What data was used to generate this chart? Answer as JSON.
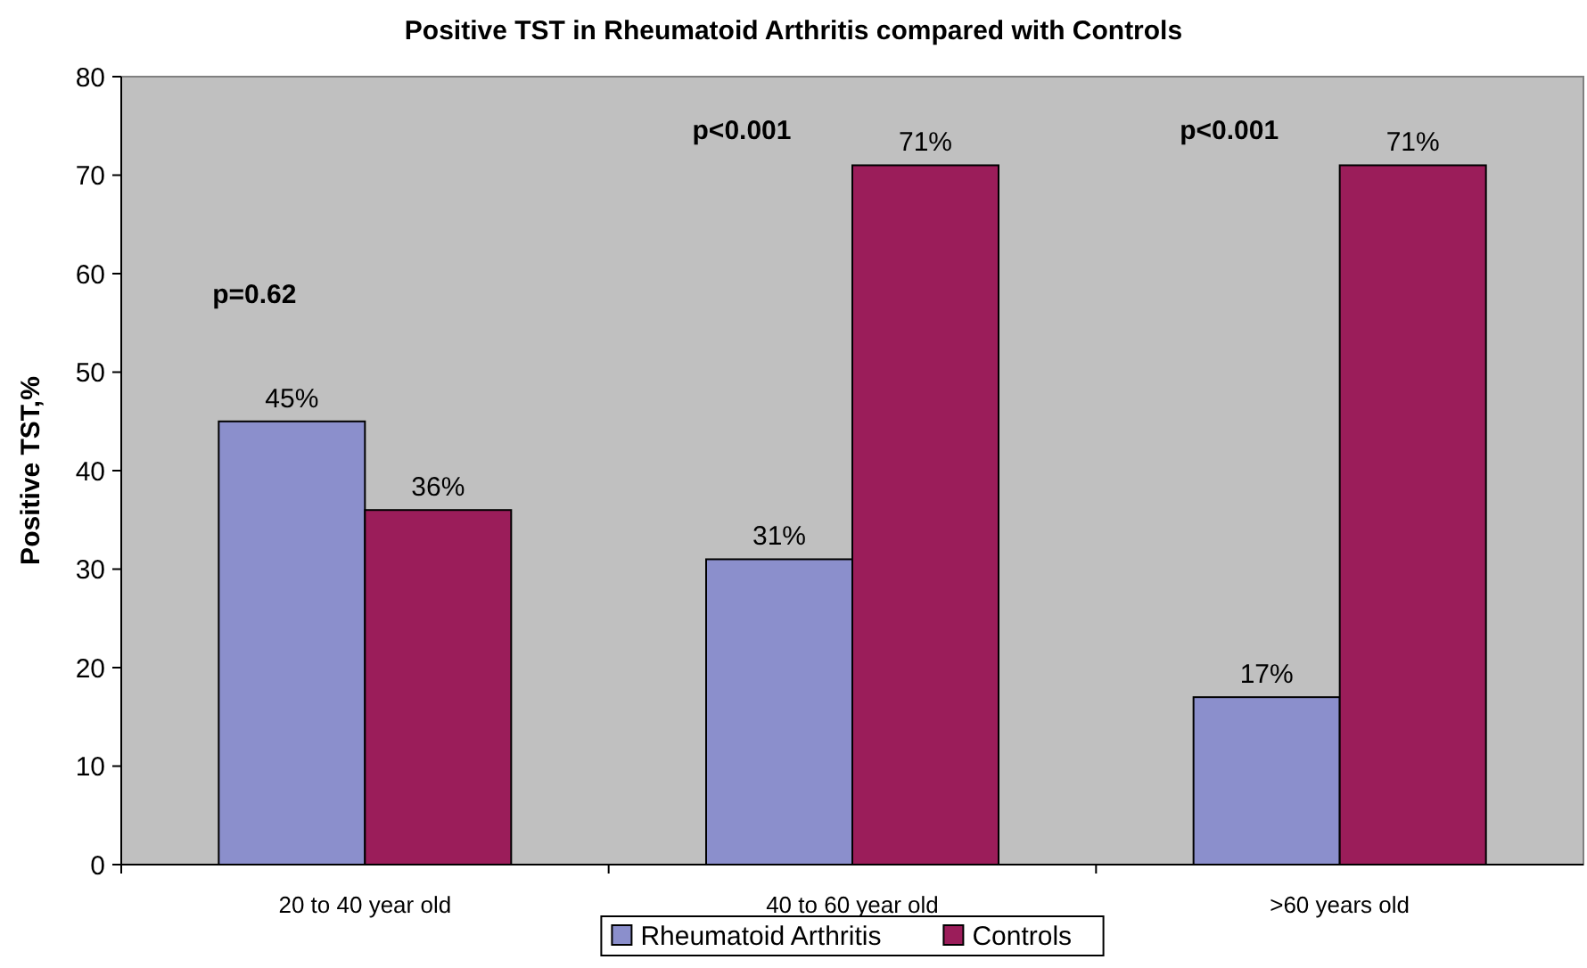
{
  "chart_data": {
    "type": "bar",
    "title": "Positive TST in Rheumatoid Arthritis compared with Controls",
    "ylabel": "Positive TST,%",
    "categories": [
      "20 to 40 year old",
      "40 to 60 year old",
      ">60 years old"
    ],
    "series": [
      {
        "name": "Rheumatoid Arthritis",
        "color": "#8b8fcc",
        "values": [
          45,
          31,
          17
        ],
        "value_labels": [
          "45%",
          "31%",
          "17%"
        ]
      },
      {
        "name": "Controls",
        "color": "#9b1d5a",
        "values": [
          36,
          71,
          71
        ],
        "value_labels": [
          "36%",
          "71%",
          "71%"
        ]
      }
    ],
    "ylim": [
      0,
      80
    ],
    "yticks": [
      0,
      10,
      20,
      30,
      40,
      50,
      60,
      70,
      80
    ],
    "legend": "bottom",
    "annotations": [
      "p=0.62",
      "p<0.001",
      "p<0.001"
    ]
  }
}
